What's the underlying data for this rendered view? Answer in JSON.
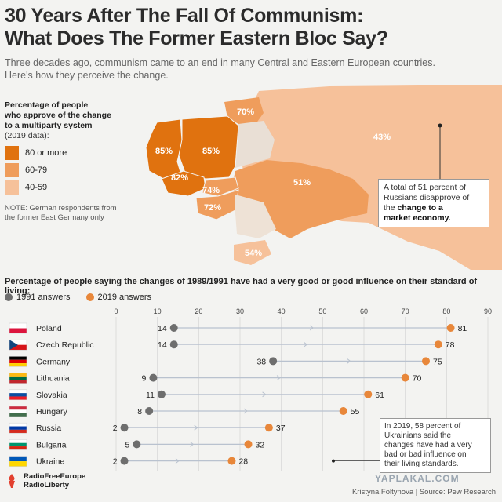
{
  "header": {
    "title_line1": "30 Years After The Fall Of Communism:",
    "title_line2": "What Does The Former Eastern Bloc Say?",
    "subtitle_line1": "Three decades ago, communism came to an end in many Central and Eastern European countries.",
    "subtitle_line2": "Here's how they perceive the change."
  },
  "map_legend": {
    "title_line1": "Percentage of people",
    "title_line2": "who approve of the change",
    "title_line3": "to a multiparty system",
    "year": "(2019 data):",
    "items": [
      {
        "label": "80 or more",
        "color": "#e0720f"
      },
      {
        "label": "60-79",
        "color": "#ef9d5c"
      },
      {
        "label": "40-59",
        "color": "#f6c19a"
      }
    ],
    "note_line1": "NOTE: German respondents from",
    "note_line2": "the former East Germany only"
  },
  "map_labels": {
    "lithuania": "70%",
    "russia": "43%",
    "germany": "85%",
    "poland": "85%",
    "czech": "82%",
    "slovakia": "74%",
    "hungary": "72%",
    "ukraine": "51%",
    "bulgaria": "54%"
  },
  "russia_callout": {
    "text1": "A total of 51 percent of",
    "text2": "Russians disapprove of",
    "text3": "the",
    "bold1": "change to a",
    "bold2": "market economy."
  },
  "lower_title": "Percentage of people saying the changes of 1989/1991 have had a very good or good influence on their standard of living:",
  "series_legend": {
    "s1991": "1991 answers",
    "s2019": "2019 answers"
  },
  "colors": {
    "c1991": "#6e6e6e",
    "c2019": "#e8873a",
    "line": "#b9c2cf"
  },
  "chart_data": {
    "type": "scatter",
    "xlim": [
      0,
      90
    ],
    "xticks": [
      "0",
      "10",
      "20",
      "30",
      "40",
      "50",
      "60",
      "70",
      "80",
      "90"
    ],
    "categories": [
      "Poland",
      "Czech Republic",
      "Germany",
      "Lithuania",
      "Slovakia",
      "Hungary",
      "Russia",
      "Bulgaria",
      "Ukraine"
    ],
    "series": [
      {
        "name": "1991 answers",
        "values": [
          14,
          14,
          38,
          9,
          11,
          8,
          2,
          5,
          2
        ]
      },
      {
        "name": "2019 answers",
        "values": [
          81,
          78,
          75,
          70,
          61,
          55,
          37,
          32,
          28
        ]
      }
    ]
  },
  "ukraine_callout": {
    "l1": "In 2019, 58 percent of",
    "l2": "Ukrainians said the",
    "l3": "changes have had a very",
    "l4": "bad or bad influence on",
    "l5": "their living standards."
  },
  "footer": {
    "logo1": "RadioFreeEurope",
    "logo2": "RadioLiberty",
    "credit": "Kristyna Foltynova | Source: Pew Research",
    "watermark": "YAPLAKAL.COM"
  }
}
